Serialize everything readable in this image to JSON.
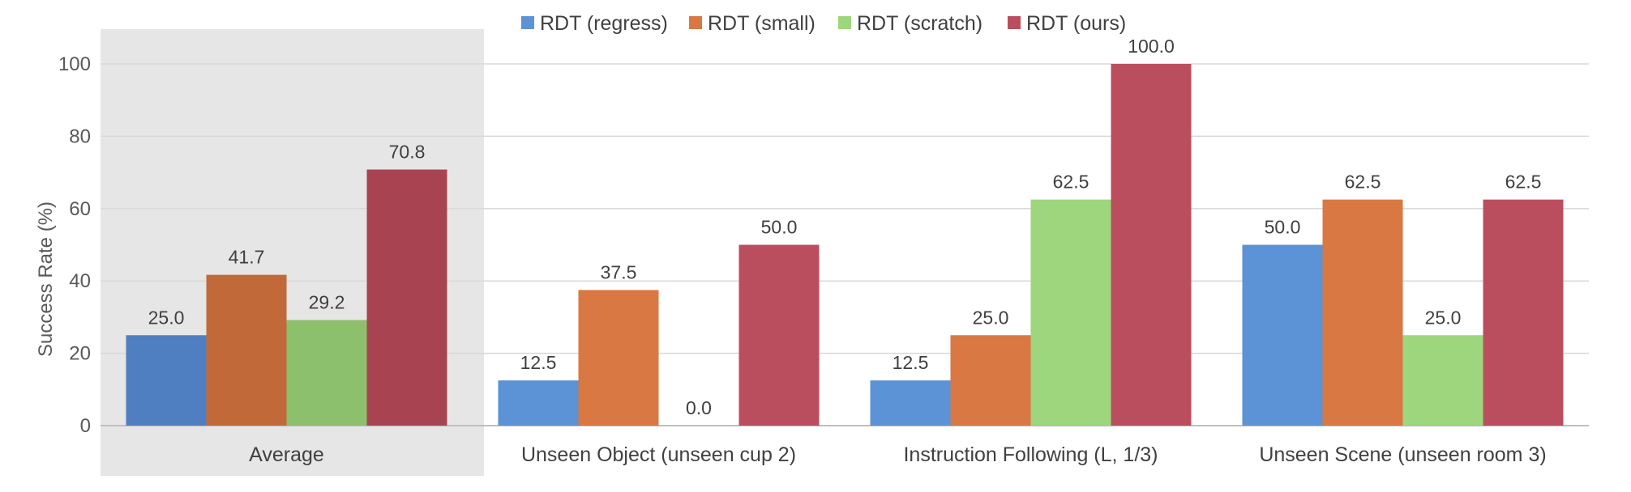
{
  "chart_data": {
    "type": "bar",
    "title": "",
    "xlabel": "",
    "ylabel": "Success Rate (%)",
    "ylim": [
      0,
      100
    ],
    "yticks": [
      0,
      20,
      40,
      60,
      80,
      100
    ],
    "grid": true,
    "legend_position": "top",
    "highlighted_category": "Average",
    "categories": [
      "Average",
      "Unseen Object (unseen cup 2)",
      "Instruction Following (L, 1/3)",
      "Unseen Scene (unseen room 3)"
    ],
    "series": [
      {
        "name": "RDT (regress)",
        "color": "#5b93d6",
        "highlight_color": "#4f7fc0",
        "values": [
          25.0,
          12.5,
          12.5,
          50.0
        ],
        "labels": [
          "25.0",
          "12.5",
          "12.5",
          "50.0"
        ]
      },
      {
        "name": "RDT (small)",
        "color": "#d97843",
        "highlight_color": "#c2693a",
        "values": [
          41.7,
          37.5,
          25.0,
          62.5
        ],
        "labels": [
          "41.7",
          "37.5",
          "25.0",
          "62.5"
        ]
      },
      {
        "name": "RDT (scratch)",
        "color": "#9dd67d",
        "highlight_color": "#8dc06d",
        "values": [
          29.2,
          0.0,
          62.5,
          25.0
        ],
        "labels": [
          "29.2",
          "0.0",
          "62.5",
          "25.0"
        ]
      },
      {
        "name": "RDT (ours)",
        "color": "#bb4e5e",
        "highlight_color": "#a84452",
        "values": [
          70.8,
          50.0,
          100.0,
          62.5
        ],
        "labels": [
          "70.8",
          "50.0",
          "100.0",
          "62.5"
        ]
      }
    ],
    "colors": {
      "grid": "#d9d9d9",
      "axis": "#bfbfbf",
      "highlight_background": "#e6e6e6"
    }
  }
}
